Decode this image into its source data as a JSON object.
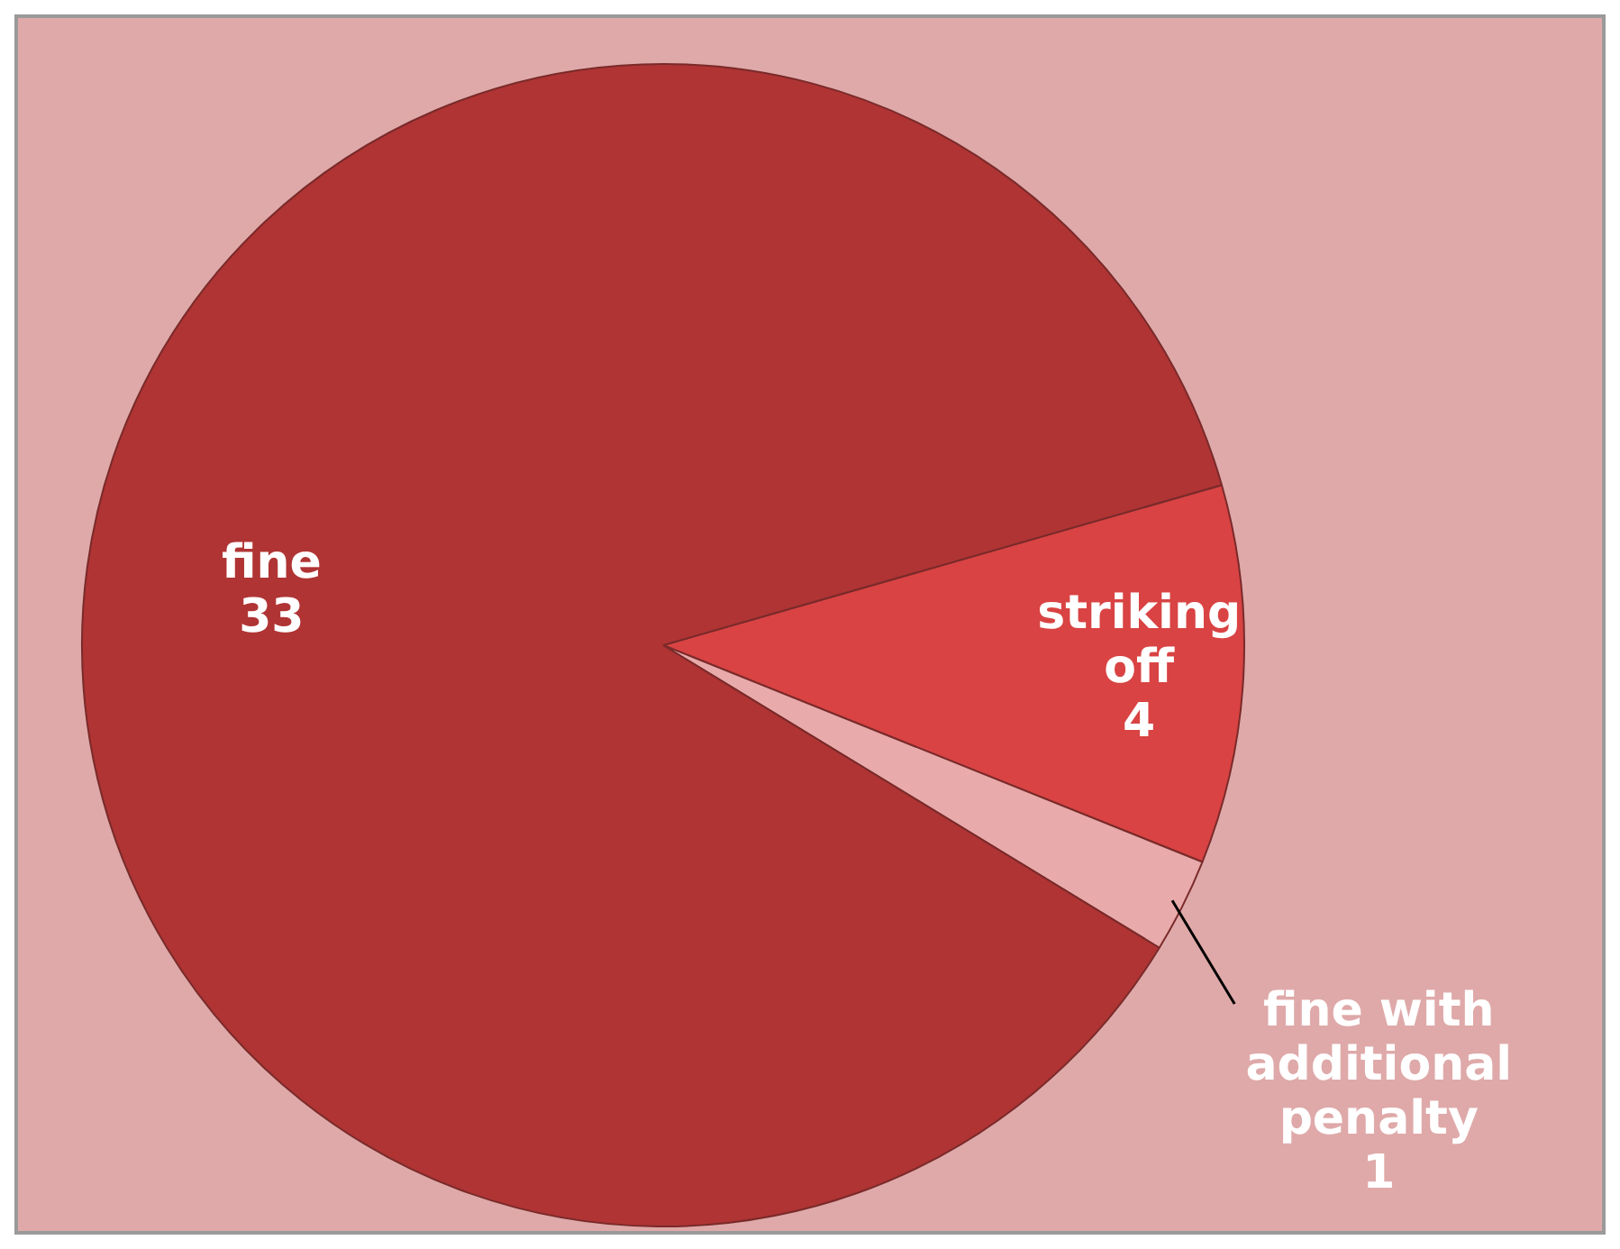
{
  "chart_data": {
    "type": "pie",
    "categories": [
      "striking off",
      "fine with additional penalty",
      "fine"
    ],
    "values": [
      4,
      1,
      33
    ],
    "colors": [
      "#d94343",
      "#e8aaaa",
      "#b03434"
    ],
    "data_labels": true,
    "legend": false
  }
}
